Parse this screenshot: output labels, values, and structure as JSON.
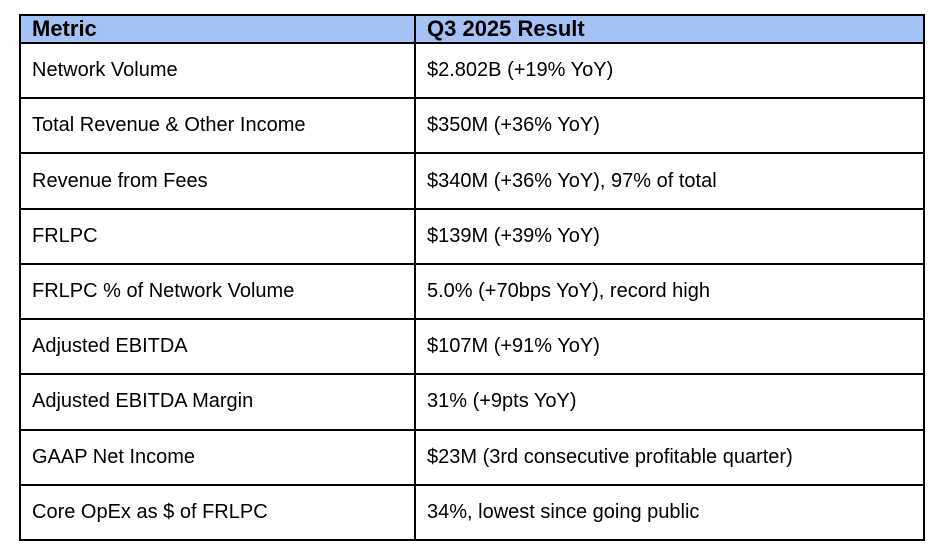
{
  "table": {
    "headers": [
      "Metric",
      "Q3 2025 Result"
    ],
    "rows": [
      {
        "metric": "Network Volume",
        "result": "$2.802B (+19% YoY)"
      },
      {
        "metric": "Total Revenue & Other Income",
        "result": "$350M (+36% YoY)"
      },
      {
        "metric": "Revenue from Fees",
        "result": "$340M (+36% YoY), 97% of total"
      },
      {
        "metric": "FRLPC",
        "result": "$139M (+39% YoY)"
      },
      {
        "metric": "FRLPC % of Network Volume",
        "result": "5.0% (+70bps YoY), record high"
      },
      {
        "metric": "Adjusted EBITDA",
        "result": "$107M (+91% YoY)"
      },
      {
        "metric": "Adjusted EBITDA Margin",
        "result": "31% (+9pts YoY)"
      },
      {
        "metric": "GAAP Net Income",
        "result": "$23M (3rd consecutive profitable quarter)"
      },
      {
        "metric": "Core OpEx as $ of FRLPC",
        "result": "34%, lowest since going public"
      }
    ]
  },
  "colors": {
    "header_bg": "#a4c2f4",
    "border": "#000000",
    "text": "#000000",
    "page_bg": "#ffffff"
  }
}
